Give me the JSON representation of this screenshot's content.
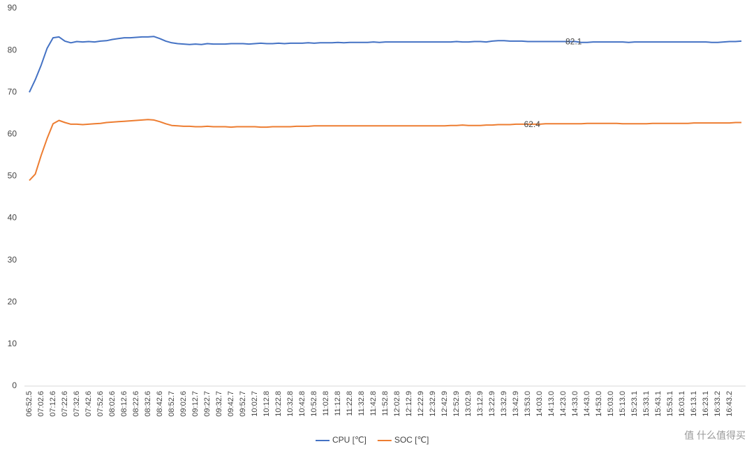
{
  "chart_data": {
    "type": "line",
    "categories": [
      "06:52.5",
      null,
      "07:02.6",
      null,
      "07:12.6",
      null,
      "07:22.6",
      null,
      "07:32.6",
      null,
      "07:42.6",
      null,
      "07:52.6",
      null,
      "08:02.6",
      null,
      "08:12.6",
      null,
      "08:22.6",
      null,
      "08:32.6",
      null,
      "08:42.6",
      null,
      "08:52.7",
      null,
      "09:02.6",
      null,
      "09:12.7",
      null,
      "09:22.7",
      null,
      "09:32.7",
      null,
      "09:42.7",
      null,
      "09:52.7",
      null,
      "10:02.7",
      null,
      "10:12.8",
      null,
      "10:22.8",
      null,
      "10:32.8",
      null,
      "10:42.8",
      null,
      "10:52.8",
      null,
      "11:02.8",
      null,
      "11:12.8",
      null,
      "11:22.8",
      null,
      "11:32.8",
      null,
      "11:42.8",
      null,
      "11:52.8",
      null,
      "12:02.8",
      null,
      "12:12.9",
      null,
      "12:22.9",
      null,
      "12:32.9",
      null,
      "12:42.9",
      null,
      "12:52.9",
      null,
      "13:02.9",
      null,
      "13:12.9",
      null,
      "13:22.9",
      null,
      "13:32.9",
      null,
      "13:42.9",
      null,
      "13:53.0",
      null,
      "14:03.0",
      null,
      "14:13.0",
      null,
      "14:23.0",
      null,
      "14:33.0",
      null,
      "14:43.0",
      null,
      "14:53.0",
      null,
      "15:03.0",
      null,
      "15:13.0",
      null,
      "15:23.1",
      null,
      "15:33.1",
      null,
      "15:43.1",
      null,
      "15:53.1",
      null,
      "16:03.1",
      null,
      "16:13.1",
      null,
      "16:23.1",
      null,
      "16:33.2",
      null,
      "16:43.2",
      null,
      null
    ],
    "series": [
      {
        "name": "CPU [℃]",
        "color": "#4472c4",
        "values": [
          70,
          73,
          76.5,
          80.5,
          83,
          83.2,
          82.2,
          81.8,
          82.1,
          82,
          82.1,
          82,
          82.2,
          82.3,
          82.6,
          82.8,
          83,
          83,
          83.1,
          83.2,
          83.2,
          83.3,
          82.8,
          82.2,
          81.8,
          81.6,
          81.5,
          81.4,
          81.5,
          81.4,
          81.6,
          81.5,
          81.5,
          81.5,
          81.6,
          81.6,
          81.6,
          81.5,
          81.6,
          81.7,
          81.6,
          81.6,
          81.7,
          81.6,
          81.7,
          81.7,
          81.7,
          81.8,
          81.7,
          81.8,
          81.8,
          81.8,
          81.9,
          81.8,
          81.9,
          81.9,
          81.9,
          81.9,
          82,
          81.9,
          82,
          82,
          82,
          82,
          82,
          82,
          82,
          82,
          82,
          82,
          82,
          82,
          82.1,
          82,
          82,
          82.1,
          82.1,
          82,
          82.2,
          82.3,
          82.3,
          82.2,
          82.2,
          82.2,
          82.1,
          82.1,
          82.1,
          82.1,
          82.1,
          82.1,
          82.1,
          82.1,
          82.1,
          81.9,
          81.9,
          82,
          82,
          82,
          82,
          82,
          82,
          81.9,
          82,
          82,
          82,
          82,
          82,
          82,
          82,
          82,
          82,
          82,
          82,
          82,
          82,
          81.9,
          81.9,
          82,
          82.1,
          82.1,
          82.2
        ],
        "value_labels": [
          null,
          null,
          null,
          null,
          null,
          null,
          null,
          null,
          null,
          null,
          null,
          null,
          null,
          null,
          null,
          null,
          null,
          null,
          null,
          null,
          null,
          null,
          null,
          null,
          null,
          null,
          null,
          null,
          null,
          null,
          null,
          null,
          null,
          null,
          null,
          null,
          null,
          null,
          null,
          null,
          null,
          null,
          null,
          null,
          null,
          null,
          null,
          null,
          null,
          null,
          null,
          null,
          null,
          null,
          null,
          null,
          null,
          null,
          null,
          null,
          null,
          null,
          null,
          null,
          null,
          null,
          null,
          null,
          null,
          null,
          null,
          null,
          null,
          null,
          null,
          null,
          null,
          null,
          null,
          null,
          null,
          null,
          null,
          null,
          null,
          null,
          null,
          null,
          null,
          null,
          null,
          null,
          "82.1",
          null,
          null,
          null,
          null,
          null,
          null,
          null,
          null,
          null,
          null,
          null,
          null,
          null,
          null,
          null,
          null,
          null,
          null,
          null,
          null,
          null,
          null,
          null,
          null,
          null,
          null,
          null,
          null
        ]
      },
      {
        "name": "SOC [℃]",
        "color": "#ed7d31",
        "values": [
          49,
          50.5,
          55,
          59,
          62.5,
          63.3,
          62.8,
          62.4,
          62.4,
          62.3,
          62.4,
          62.5,
          62.6,
          62.8,
          62.9,
          63,
          63.1,
          63.2,
          63.3,
          63.4,
          63.5,
          63.4,
          63,
          62.5,
          62.1,
          62,
          61.9,
          61.9,
          61.8,
          61.8,
          61.9,
          61.8,
          61.8,
          61.8,
          61.7,
          61.8,
          61.8,
          61.8,
          61.8,
          61.7,
          61.7,
          61.8,
          61.8,
          61.8,
          61.8,
          61.9,
          61.9,
          61.9,
          62,
          62,
          62,
          62,
          62,
          62,
          62,
          62,
          62,
          62,
          62,
          62,
          62,
          62,
          62,
          62,
          62,
          62,
          62,
          62,
          62,
          62,
          62,
          62.1,
          62.1,
          62.2,
          62.1,
          62.1,
          62.1,
          62.2,
          62.2,
          62.3,
          62.3,
          62.3,
          62.4,
          62.4,
          62.4,
          62.4,
          62.4,
          62.5,
          62.5,
          62.5,
          62.5,
          62.5,
          62.5,
          62.5,
          62.6,
          62.6,
          62.6,
          62.6,
          62.6,
          62.6,
          62.5,
          62.5,
          62.5,
          62.5,
          62.5,
          62.6,
          62.6,
          62.6,
          62.6,
          62.6,
          62.6,
          62.6,
          62.7,
          62.7,
          62.7,
          62.7,
          62.7,
          62.7,
          62.7,
          62.8,
          62.8
        ],
        "value_labels": [
          null,
          null,
          null,
          null,
          null,
          null,
          null,
          null,
          null,
          null,
          null,
          null,
          null,
          null,
          null,
          null,
          null,
          null,
          null,
          null,
          null,
          null,
          null,
          null,
          null,
          null,
          null,
          null,
          null,
          null,
          null,
          null,
          null,
          null,
          null,
          null,
          null,
          null,
          null,
          null,
          null,
          null,
          null,
          null,
          null,
          null,
          null,
          null,
          null,
          null,
          null,
          null,
          null,
          null,
          null,
          null,
          null,
          null,
          null,
          null,
          null,
          null,
          null,
          null,
          null,
          null,
          null,
          null,
          null,
          null,
          null,
          null,
          null,
          null,
          null,
          null,
          null,
          null,
          null,
          null,
          null,
          null,
          null,
          null,
          null,
          "62.4",
          null,
          null,
          null,
          null,
          null,
          null,
          null,
          null,
          null,
          null,
          null,
          null,
          null,
          null,
          null,
          null,
          null,
          null,
          null,
          null,
          null,
          null,
          null,
          null,
          null,
          null,
          null,
          null,
          null,
          null,
          null,
          null,
          null,
          null,
          null
        ]
      }
    ],
    "ylim": [
      0,
      90
    ],
    "yticks": [
      0,
      10,
      20,
      30,
      40,
      50,
      60,
      70,
      80,
      90
    ],
    "grid": false,
    "legend": "bottom",
    "watermark": "值 什么值得买"
  }
}
